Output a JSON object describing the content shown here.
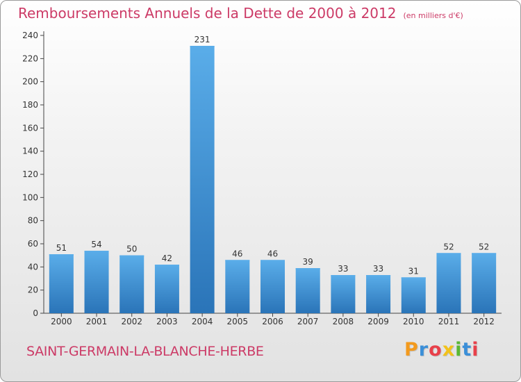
{
  "title": "Remboursements Annuels de la Dette de 2000 à 2012",
  "unit": "(en milliers d'€)",
  "commune": "SAINT-GERMAIN-LA-BLANCHE-HERBE",
  "logo": {
    "letters": [
      "P",
      "r",
      "o",
      "x",
      "i",
      "t",
      "i"
    ],
    "colors": [
      "#f39a1d",
      "#3b8fd8",
      "#e8404a",
      "#f2c21b",
      "#5ab833",
      "#3b8fd8",
      "#e8404a"
    ]
  },
  "colors": {
    "bar": "#3a8fd6",
    "bar_light": "#5aade9",
    "bar_dark": "#2a74b8",
    "title": "#cc3a66"
  },
  "chart_data": {
    "type": "bar",
    "categories": [
      "2000",
      "2001",
      "2002",
      "2003",
      "2004",
      "2005",
      "2006",
      "2007",
      "2008",
      "2009",
      "2010",
      "2011",
      "2012"
    ],
    "values": [
      51,
      54,
      50,
      42,
      231,
      46,
      46,
      39,
      33,
      33,
      31,
      52,
      52
    ],
    "title": "Remboursements Annuels de la Dette de 2000 à 2012",
    "ylim": [
      0,
      240
    ],
    "yticks": [
      0,
      20,
      40,
      60,
      80,
      100,
      120,
      140,
      160,
      180,
      200,
      220,
      240
    ],
    "grid": false,
    "data_labels": true
  }
}
